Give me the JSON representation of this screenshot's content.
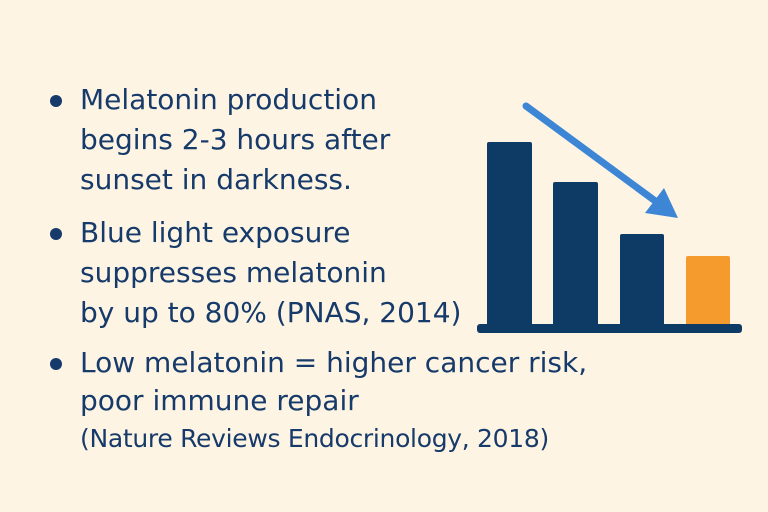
{
  "bullets": [
    {
      "lines": [
        "Melatonin production",
        "begins 2-3 hours after",
        "sunset in darkness."
      ]
    },
    {
      "lines": [
        "Blue light exposure",
        "suppresses melatonin",
        "by up to 80% (PNAS, 2014)"
      ]
    },
    {
      "lines": [
        "Low melatonin = higher cancer risk,",
        "poor immune repair",
        "(Nature Reviews Endocrinology, 2018)"
      ]
    }
  ]
}
